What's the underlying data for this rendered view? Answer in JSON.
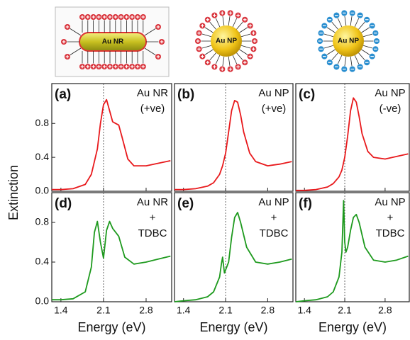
{
  "illustrations": [
    {
      "label": "Au NR"
    },
    {
      "label": "Au NP"
    },
    {
      "label": "Au NP"
    }
  ],
  "chart_data": [
    {
      "type": "line",
      "panel_label": "(a)",
      "annotation": [
        "Au NR",
        "(+ve)"
      ],
      "ylabel": "Extinction",
      "color": "#e8191c",
      "xlim": [
        1.25,
        3.22
      ],
      "xticks": [
        1.4,
        2.1,
        2.8
      ],
      "ylim": [
        0,
        1.27
      ],
      "yticks": [
        {
          "value": 0,
          "label": "0.0"
        },
        0.4,
        0.8
      ],
      "vline": 2.1,
      "x": [
        1.25,
        1.4,
        1.6,
        1.8,
        1.9,
        2.0,
        2.05,
        2.1,
        2.15,
        2.2,
        2.25,
        2.3,
        2.35,
        2.4,
        2.5,
        2.6,
        2.8,
        3.0,
        3.2
      ],
      "values": [
        0.02,
        0.02,
        0.03,
        0.08,
        0.2,
        0.5,
        0.8,
        1.02,
        1.08,
        0.95,
        0.82,
        0.8,
        0.78,
        0.65,
        0.38,
        0.3,
        0.3,
        0.33,
        0.36
      ]
    },
    {
      "type": "line",
      "panel_label": "(b)",
      "annotation": [
        "Au NP",
        "(+ve)"
      ],
      "color": "#e8191c",
      "xlim": [
        1.25,
        3.22
      ],
      "xticks": [
        1.4,
        2.1,
        2.8
      ],
      "ylim": [
        0,
        1.27
      ],
      "vline": 2.1,
      "x": [
        1.25,
        1.4,
        1.6,
        1.8,
        1.9,
        2.0,
        2.05,
        2.1,
        2.15,
        2.2,
        2.25,
        2.3,
        2.35,
        2.4,
        2.5,
        2.6,
        2.8,
        3.0,
        3.2
      ],
      "values": [
        0.02,
        0.02,
        0.03,
        0.06,
        0.1,
        0.2,
        0.3,
        0.45,
        0.7,
        0.95,
        1.07,
        1.05,
        0.9,
        0.7,
        0.45,
        0.35,
        0.3,
        0.32,
        0.35
      ]
    },
    {
      "type": "line",
      "panel_label": "(c)",
      "annotation": [
        "Au NP",
        "(-ve)"
      ],
      "color": "#e8191c",
      "xlim": [
        1.25,
        3.22
      ],
      "xticks": [
        1.4,
        2.1,
        2.8
      ],
      "ylim": [
        0,
        1.27
      ],
      "vline": 2.1,
      "x": [
        1.25,
        1.4,
        1.6,
        1.8,
        1.9,
        2.0,
        2.05,
        2.1,
        2.15,
        2.2,
        2.25,
        2.3,
        2.35,
        2.4,
        2.5,
        2.6,
        2.8,
        3.0,
        3.2
      ],
      "values": [
        0.01,
        0.01,
        0.02,
        0.05,
        0.09,
        0.17,
        0.25,
        0.4,
        0.65,
        0.95,
        1.1,
        1.05,
        0.88,
        0.68,
        0.47,
        0.4,
        0.38,
        0.41,
        0.44
      ]
    },
    {
      "type": "line",
      "panel_label": "(d)",
      "annotation": [
        "Au NR",
        "+",
        "TDBC"
      ],
      "xlabel": "Energy (eV)",
      "color": "#1e9a1e",
      "xlim": [
        1.25,
        3.22
      ],
      "xticks": [
        1.4,
        2.1,
        2.8
      ],
      "ylim": [
        0,
        1.1
      ],
      "yticks": [
        {
          "value": 0,
          "label": "0.0"
        },
        0.4,
        0.8
      ],
      "vline": 2.1,
      "x": [
        1.25,
        1.4,
        1.6,
        1.8,
        1.9,
        1.95,
        2.0,
        2.05,
        2.1,
        2.15,
        2.2,
        2.25,
        2.35,
        2.45,
        2.6,
        2.8,
        3.0,
        3.2
      ],
      "values": [
        0.02,
        0.02,
        0.03,
        0.1,
        0.35,
        0.7,
        0.81,
        0.6,
        0.44,
        0.72,
        0.81,
        0.74,
        0.66,
        0.45,
        0.38,
        0.4,
        0.43,
        0.46
      ]
    },
    {
      "type": "line",
      "panel_label": "(e)",
      "annotation": [
        "Au NP",
        "+",
        "TDBC"
      ],
      "xlabel": "Energy (eV)",
      "color": "#1e9a1e",
      "xlim": [
        1.25,
        3.22
      ],
      "xticks": [
        1.4,
        2.1,
        2.8
      ],
      "ylim": [
        0,
        1.1
      ],
      "vline": 2.1,
      "x": [
        1.25,
        1.4,
        1.6,
        1.8,
        1.9,
        2.0,
        2.03,
        2.05,
        2.08,
        2.15,
        2.2,
        2.25,
        2.3,
        2.35,
        2.45,
        2.6,
        2.8,
        3.0,
        3.2
      ],
      "values": [
        0.0,
        0.01,
        0.02,
        0.05,
        0.1,
        0.25,
        0.38,
        0.45,
        0.29,
        0.4,
        0.65,
        0.85,
        0.9,
        0.8,
        0.55,
        0.4,
        0.38,
        0.4,
        0.43
      ]
    },
    {
      "type": "line",
      "panel_label": "(f)",
      "annotation": [
        "Au NP",
        "+",
        "TDBC"
      ],
      "xlabel": "Energy (eV)",
      "color": "#1e9a1e",
      "xlim": [
        1.25,
        3.22
      ],
      "xticks": [
        1.4,
        2.1,
        2.8
      ],
      "ylim": [
        0,
        1.1
      ],
      "vline": 2.1,
      "x": [
        1.25,
        1.4,
        1.6,
        1.8,
        1.9,
        2.0,
        2.05,
        2.08,
        2.1,
        2.12,
        2.15,
        2.2,
        2.25,
        2.3,
        2.35,
        2.45,
        2.6,
        2.8,
        3.0,
        3.2
      ],
      "values": [
        0,
        0.01,
        0.02,
        0.05,
        0.1,
        0.25,
        0.5,
        1.02,
        0.6,
        0.5,
        0.55,
        0.72,
        0.85,
        0.88,
        0.8,
        0.55,
        0.42,
        0.4,
        0.42,
        0.46
      ]
    }
  ]
}
